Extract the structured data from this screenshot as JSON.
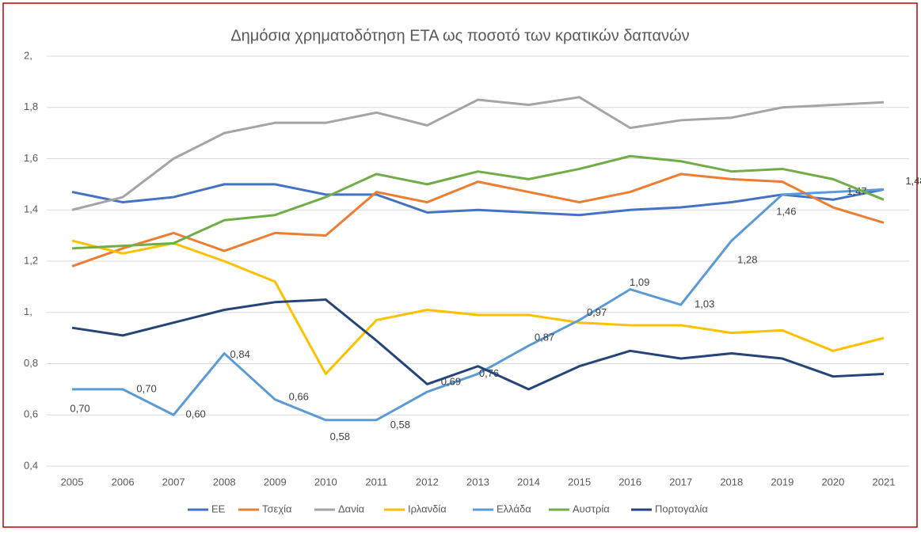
{
  "chart_data": {
    "type": "line",
    "title": "Δημόσια χρηματοδότηση ΕΤΑ ως ποσοτό των κρατικών δαπανών",
    "categories": [
      "2005",
      "2006",
      "2007",
      "2008",
      "2009",
      "2010",
      "2011",
      "2012",
      "2013",
      "2014",
      "2015",
      "2016",
      "2017",
      "2018",
      "2019",
      "2020",
      "2021"
    ],
    "ylim": [
      0.4,
      2
    ],
    "yticks": [
      {
        "value": 0.4,
        "label": "0,4"
      },
      {
        "value": 0.6,
        "label": "0,6"
      },
      {
        "value": 0.8,
        "label": "0,8"
      },
      {
        "value": 1,
        "label": "1,"
      },
      {
        "value": 1.2,
        "label": "1,2"
      },
      {
        "value": 1.4,
        "label": "1,4"
      },
      {
        "value": 1.6,
        "label": "1,6"
      },
      {
        "value": 1.8,
        "label": "1,8"
      },
      {
        "value": 2,
        "label": "2,"
      }
    ],
    "grid": true,
    "legend": "bottom",
    "series": [
      {
        "name": "ΕΕ",
        "color": "#4472c4",
        "values": [
          1.47,
          1.43,
          1.45,
          1.5,
          1.5,
          1.46,
          1.46,
          1.39,
          1.4,
          1.39,
          1.38,
          1.4,
          1.41,
          1.43,
          1.46,
          1.44,
          1.48
        ]
      },
      {
        "name": "Τσεχία",
        "color": "#ed7d31",
        "values": [
          1.18,
          1.25,
          1.31,
          1.24,
          1.31,
          1.3,
          1.47,
          1.43,
          1.51,
          1.47,
          1.43,
          1.47,
          1.54,
          1.52,
          1.51,
          1.41,
          1.35
        ]
      },
      {
        "name": "Δανία",
        "color": "#a5a5a5",
        "values": [
          1.4,
          1.45,
          1.6,
          1.7,
          1.74,
          1.74,
          1.78,
          1.73,
          1.83,
          1.81,
          1.84,
          1.72,
          1.75,
          1.76,
          1.8,
          1.81,
          1.82
        ]
      },
      {
        "name": "Ιρλανδία",
        "color": "#ffc000",
        "values": [
          1.28,
          1.23,
          1.27,
          1.2,
          1.12,
          0.76,
          0.97,
          1.01,
          0.99,
          0.99,
          0.96,
          0.95,
          0.95,
          0.92,
          0.93,
          0.85,
          0.9
        ]
      },
      {
        "name": "Ελλάδα",
        "color": "#5b9bd5",
        "values": [
          0.7,
          0.7,
          0.6,
          0.84,
          0.66,
          0.58,
          0.58,
          0.69,
          0.76,
          0.87,
          0.97,
          1.09,
          1.03,
          1.28,
          1.46,
          1.47,
          1.48
        ],
        "value_labels": [
          "0,70",
          "0,70",
          "0,60",
          "0,84",
          "0,66",
          "0,58",
          "0,58",
          "0,69",
          "0,76",
          "0,87",
          "0,97",
          "1,09",
          "1,03",
          "1,28",
          "1,46",
          "1,47",
          "1,48"
        ]
      },
      {
        "name": "Αυστρία",
        "color": "#70ad47",
        "values": [
          1.25,
          1.26,
          1.27,
          1.36,
          1.38,
          1.45,
          1.54,
          1.5,
          1.55,
          1.52,
          1.56,
          1.61,
          1.59,
          1.55,
          1.56,
          1.52,
          1.44
        ]
      },
      {
        "name": "Πορτογαλία",
        "color": "#264478",
        "values": [
          0.94,
          0.91,
          0.96,
          1.01,
          1.04,
          1.05,
          0.89,
          0.72,
          0.79,
          0.7,
          0.79,
          0.85,
          0.82,
          0.84,
          0.82,
          0.75,
          0.76
        ]
      }
    ]
  }
}
